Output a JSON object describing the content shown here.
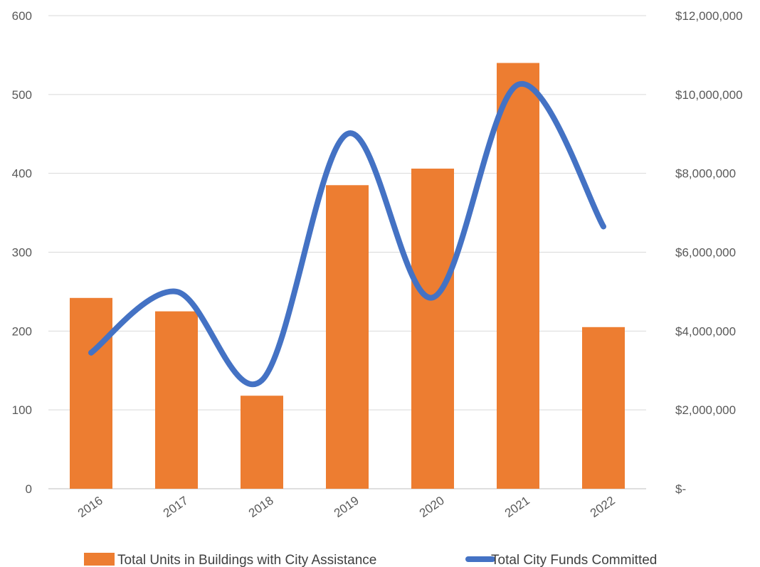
{
  "chart_data": {
    "type": "bar",
    "categories": [
      "2016",
      "2017",
      "2018",
      "2019",
      "2020",
      "2021",
      "2022"
    ],
    "series": [
      {
        "name": "Total Units in Buildings with City Assistance",
        "type": "bar",
        "axis": "left",
        "color": "#ED7D31",
        "values": [
          242,
          225,
          118,
          385,
          406,
          540,
          205
        ]
      },
      {
        "name": "Total City Funds Committed",
        "type": "line",
        "smooth": true,
        "axis": "right",
        "color": "#4472C4",
        "values": [
          3450000,
          5000000,
          2750000,
          9000000,
          4850000,
          10250000,
          6650000
        ]
      }
    ],
    "ylim_left": [
      0,
      600
    ],
    "yticks_left": [
      "0",
      "100",
      "200",
      "300",
      "400",
      "500",
      "600"
    ],
    "ylim_right": [
      0,
      12000000
    ],
    "yticks_right": [
      "$-",
      "$2,000,000",
      "$4,000,000",
      "$6,000,000",
      "$8,000,000",
      "$10,000,000",
      "$12,000,000"
    ],
    "title": "",
    "xlabel": "",
    "ylabel": "",
    "grid": true,
    "legend_position": "bottom"
  }
}
